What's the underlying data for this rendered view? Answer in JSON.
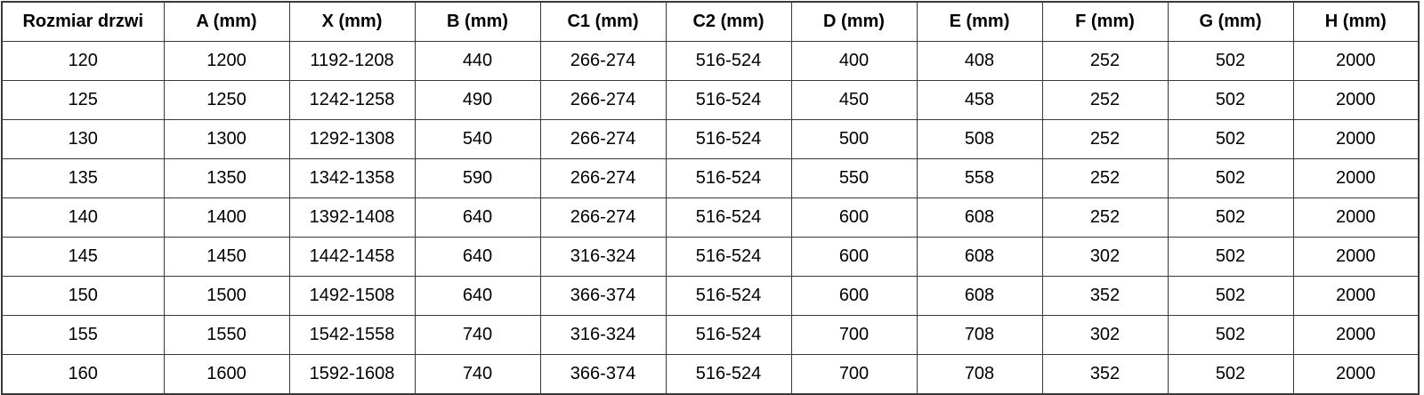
{
  "chart_data": {
    "type": "table",
    "title": "",
    "columns": [
      "Rozmiar drzwi",
      "A (mm)",
      "X (mm)",
      "B (mm)",
      "C1 (mm)",
      "C2 (mm)",
      "D (mm)",
      "E (mm)",
      "F (mm)",
      "G (mm)",
      "H (mm)"
    ],
    "rows": [
      [
        "120",
        "1200",
        "1192-1208",
        "440",
        "266-274",
        "516-524",
        "400",
        "408",
        "252",
        "502",
        "2000"
      ],
      [
        "125",
        "1250",
        "1242-1258",
        "490",
        "266-274",
        "516-524",
        "450",
        "458",
        "252",
        "502",
        "2000"
      ],
      [
        "130",
        "1300",
        "1292-1308",
        "540",
        "266-274",
        "516-524",
        "500",
        "508",
        "252",
        "502",
        "2000"
      ],
      [
        "135",
        "1350",
        "1342-1358",
        "590",
        "266-274",
        "516-524",
        "550",
        "558",
        "252",
        "502",
        "2000"
      ],
      [
        "140",
        "1400",
        "1392-1408",
        "640",
        "266-274",
        "516-524",
        "600",
        "608",
        "252",
        "502",
        "2000"
      ],
      [
        "145",
        "1450",
        "1442-1458",
        "640",
        "316-324",
        "516-524",
        "600",
        "608",
        "302",
        "502",
        "2000"
      ],
      [
        "150",
        "1500",
        "1492-1508",
        "640",
        "366-374",
        "516-524",
        "600",
        "608",
        "352",
        "502",
        "2000"
      ],
      [
        "155",
        "1550",
        "1542-1558",
        "740",
        "316-324",
        "516-524",
        "700",
        "708",
        "302",
        "502",
        "2000"
      ],
      [
        "160",
        "1600",
        "1592-1608",
        "740",
        "366-374",
        "516-524",
        "700",
        "708",
        "352",
        "502",
        "2000"
      ]
    ],
    "colors": {
      "border": "#3a3a3a",
      "text": "#000000",
      "background": "#ffffff"
    }
  }
}
